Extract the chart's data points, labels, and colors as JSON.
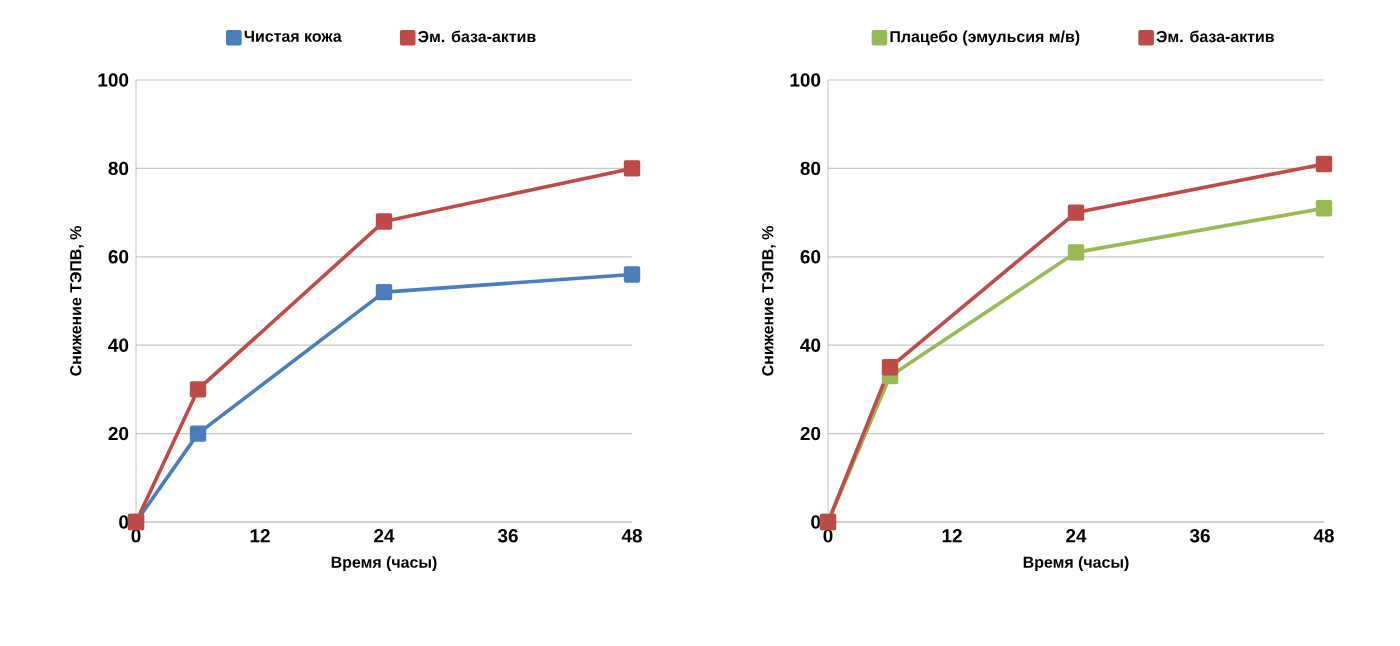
{
  "chart_data": [
    {
      "type": "line",
      "xlabel": "Время (часы)",
      "ylabel": "Снижение ТЭПВ, %",
      "x": [
        0,
        6,
        24,
        48
      ],
      "xlim": [
        0,
        48
      ],
      "ylim": [
        0,
        100
      ],
      "xticks": [
        0,
        12,
        24,
        36,
        48
      ],
      "yticks": [
        0,
        20,
        40,
        60,
        80,
        100
      ],
      "grid": "y",
      "legend": "top",
      "marker": "square",
      "series": [
        {
          "name": "Чистая кожа",
          "color": "#4a7ebb",
          "values": [
            0,
            20,
            52,
            56
          ]
        },
        {
          "name": "Эм. база-актив",
          "color": "#be4b48",
          "values": [
            0,
            30,
            68,
            80
          ]
        }
      ]
    },
    {
      "type": "line",
      "xlabel": "Время (часы)",
      "ylabel": "Снижение ТЭПВ, %",
      "x": [
        0,
        6,
        24,
        48
      ],
      "xlim": [
        0,
        48
      ],
      "ylim": [
        0,
        100
      ],
      "xticks": [
        0,
        12,
        24,
        36,
        48
      ],
      "yticks": [
        0,
        20,
        40,
        60,
        80,
        100
      ],
      "grid": "y",
      "legend": "top",
      "marker": "square",
      "series": [
        {
          "name": "Плацебо (эмульсия м/в)",
          "color": "#98b954",
          "values": [
            0,
            33,
            61,
            71
          ]
        },
        {
          "name": "Эм. база-актив",
          "color": "#be4b48",
          "values": [
            0,
            35,
            70,
            81
          ]
        }
      ]
    }
  ]
}
